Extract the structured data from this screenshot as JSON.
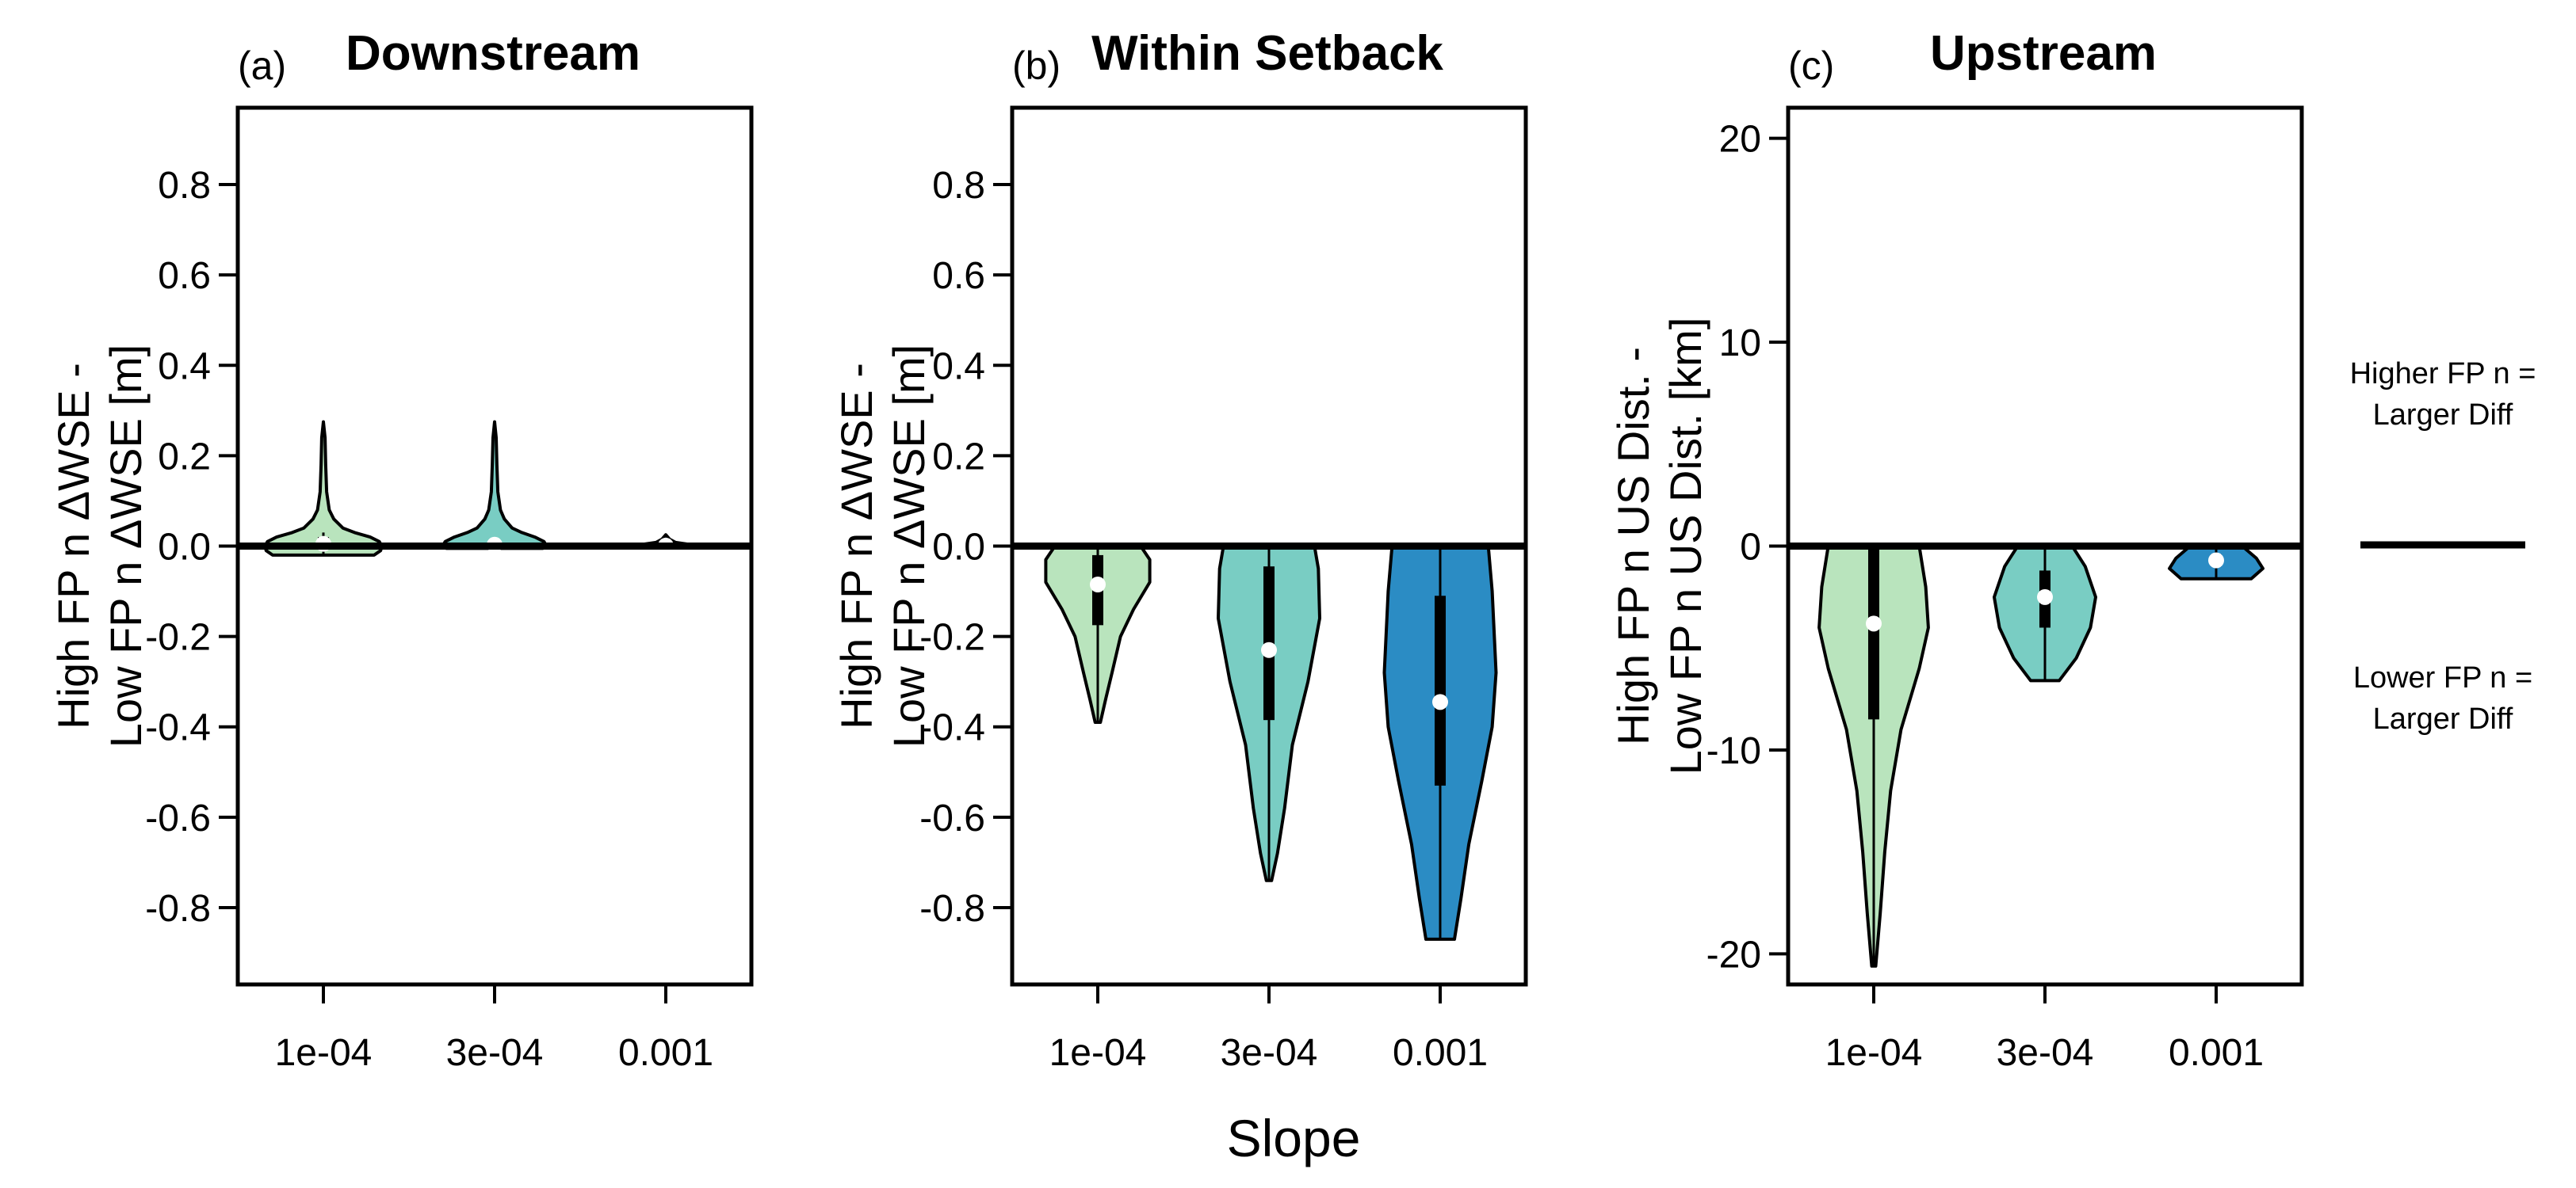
{
  "chart_data": [
    {
      "type": "violin",
      "panel_letter": "(a)",
      "title": "Downstream",
      "ylabel_lines": [
        "High FP n ΔWSE -",
        "Low FP n ΔWSE [m]"
      ],
      "categories": [
        "1e-04",
        "3e-04",
        "0.001"
      ],
      "ylim": [
        -0.97,
        0.97
      ],
      "yticks": [
        -0.8,
        -0.6,
        -0.4,
        -0.2,
        0.0,
        0.2,
        0.4,
        0.6,
        0.8
      ],
      "ytick_labels": [
        "-0.8",
        "-0.6",
        "-0.4",
        "-0.2",
        "0.0",
        "0.2",
        "0.4",
        "0.6",
        "0.8"
      ],
      "reference_line": 0,
      "violins": [
        {
          "category": "1e-04",
          "color": "#b9e4bd",
          "profile": [
            [
              -0.02,
              0.78
            ],
            [
              -0.01,
              0.88
            ],
            [
              0.0,
              0.9
            ],
            [
              0.01,
              0.86
            ],
            [
              0.02,
              0.72
            ],
            [
              0.03,
              0.48
            ],
            [
              0.04,
              0.3
            ],
            [
              0.06,
              0.16
            ],
            [
              0.08,
              0.09
            ],
            [
              0.12,
              0.05
            ],
            [
              0.18,
              0.035
            ],
            [
              0.24,
              0.025
            ],
            [
              0.275,
              0.0
            ]
          ],
          "q1": 0.0,
          "q3": 0.02,
          "median": 0.005,
          "whisker_low": -0.02,
          "whisker_high": 0.03
        },
        {
          "category": "3e-04",
          "color": "#79cdc3",
          "profile": [
            [
              -0.005,
              0.74
            ],
            [
              0.0,
              0.8
            ],
            [
              0.01,
              0.76
            ],
            [
              0.02,
              0.62
            ],
            [
              0.03,
              0.42
            ],
            [
              0.04,
              0.27
            ],
            [
              0.06,
              0.15
            ],
            [
              0.08,
              0.09
            ],
            [
              0.12,
              0.05
            ],
            [
              0.18,
              0.035
            ],
            [
              0.24,
              0.025
            ],
            [
              0.275,
              0.0
            ]
          ],
          "q1": 0.0,
          "q3": 0.01,
          "median": 0.003,
          "whisker_low": 0.0,
          "whisker_high": 0.02
        },
        {
          "category": "0.001",
          "color": "#2b8cc4",
          "profile": [
            [
              -0.004,
              0.8
            ],
            [
              0.0,
              0.7
            ],
            [
              0.004,
              0.35
            ],
            [
              0.008,
              0.15
            ],
            [
              0.015,
              0.06
            ],
            [
              0.025,
              0.0
            ]
          ],
          "q1": 0.0,
          "q3": 0.003,
          "median": 0.001,
          "whisker_low": -0.003,
          "whisker_high": 0.01
        }
      ]
    },
    {
      "type": "violin",
      "panel_letter": "(b)",
      "title": "Within Setback",
      "ylabel_lines": [
        "High FP n ΔWSE -",
        "Low FP n ΔWSE [m]"
      ],
      "categories": [
        "1e-04",
        "3e-04",
        "0.001"
      ],
      "ylim": [
        -0.97,
        0.97
      ],
      "yticks": [
        -0.8,
        -0.6,
        -0.4,
        -0.2,
        0.0,
        0.2,
        0.4,
        0.6,
        0.8
      ],
      "ytick_labels": [
        "-0.8",
        "-0.6",
        "-0.4",
        "-0.2",
        "0.0",
        "0.2",
        "0.4",
        "0.6",
        "0.8"
      ],
      "reference_line": 0,
      "violins": [
        {
          "category": "1e-04",
          "color": "#b9e4bd",
          "profile": [
            [
              -0.39,
              0.04
            ],
            [
              -0.34,
              0.12
            ],
            [
              -0.28,
              0.22
            ],
            [
              -0.2,
              0.35
            ],
            [
              -0.14,
              0.55
            ],
            [
              -0.08,
              0.8
            ],
            [
              -0.03,
              0.8
            ],
            [
              0.0,
              0.66
            ]
          ],
          "q1": -0.175,
          "q3": -0.02,
          "median": -0.085,
          "whisker_low": -0.39,
          "whisker_high": 0.0
        },
        {
          "category": "3e-04",
          "color": "#79cdc3",
          "profile": [
            [
              -0.74,
              0.04
            ],
            [
              -0.68,
              0.13
            ],
            [
              -0.58,
              0.24
            ],
            [
              -0.44,
              0.36
            ],
            [
              -0.3,
              0.6
            ],
            [
              -0.16,
              0.78
            ],
            [
              -0.05,
              0.76
            ],
            [
              0.0,
              0.7
            ]
          ],
          "q1": -0.385,
          "q3": -0.045,
          "median": -0.23,
          "whisker_low": -0.74,
          "whisker_high": 0.0
        },
        {
          "category": "0.001",
          "color": "#2b8cc4",
          "profile": [
            [
              -0.87,
              0.22
            ],
            [
              -0.78,
              0.32
            ],
            [
              -0.66,
              0.44
            ],
            [
              -0.52,
              0.64
            ],
            [
              -0.4,
              0.8
            ],
            [
              -0.28,
              0.86
            ],
            [
              -0.1,
              0.8
            ],
            [
              0.0,
              0.74
            ]
          ],
          "q1": -0.53,
          "q3": -0.11,
          "median": -0.345,
          "whisker_low": -0.87,
          "whisker_high": 0.0
        }
      ]
    },
    {
      "type": "violin",
      "panel_letter": "(c)",
      "title": "Upstream",
      "ylabel_lines": [
        "High FP n US Dist. -",
        "Low FP n US Dist. [km]"
      ],
      "categories": [
        "1e-04",
        "3e-04",
        "0.001"
      ],
      "ylim": [
        -21.5,
        21.5
      ],
      "yticks": [
        -20,
        -10,
        0,
        10,
        20
      ],
      "ytick_labels": [
        "-20",
        "-10",
        "0",
        "10",
        "20"
      ],
      "reference_line": 0,
      "violins": [
        {
          "category": "1e-04",
          "color": "#b9e4bd",
          "profile": [
            [
              -20.6,
              0.03
            ],
            [
              -18.0,
              0.1
            ],
            [
              -15.0,
              0.17
            ],
            [
              -12.0,
              0.26
            ],
            [
              -9.0,
              0.42
            ],
            [
              -6.0,
              0.7
            ],
            [
              -4.0,
              0.84
            ],
            [
              -2.0,
              0.8
            ],
            [
              0.0,
              0.7
            ]
          ],
          "q1": -8.5,
          "q3": -0.1,
          "median": -3.8,
          "whisker_low": -20.6,
          "whisker_high": 0.0
        },
        {
          "category": "3e-04",
          "color": "#79cdc3",
          "profile": [
            [
              -6.6,
              0.22
            ],
            [
              -5.5,
              0.48
            ],
            [
              -4.0,
              0.7
            ],
            [
              -2.5,
              0.78
            ],
            [
              -1.0,
              0.62
            ],
            [
              0.0,
              0.42
            ]
          ],
          "q1": -4.0,
          "q3": -1.2,
          "median": -2.5,
          "whisker_low": -6.6,
          "whisker_high": 0.0
        },
        {
          "category": "0.001",
          "color": "#2b8cc4",
          "profile": [
            [
              -1.6,
              0.54
            ],
            [
              -1.1,
              0.72
            ],
            [
              -0.6,
              0.62
            ],
            [
              0.0,
              0.4
            ]
          ],
          "q1": -1.0,
          "q3": -0.4,
          "median": -0.7,
          "whisker_low": -1.6,
          "whisker_high": 0.0
        }
      ]
    }
  ],
  "shared_xlabel": "Slope",
  "legend": {
    "higher_lines": [
      "Higher FP n =",
      "Larger Diff"
    ],
    "lower_lines": [
      "Lower FP n =",
      "Larger Diff"
    ]
  }
}
